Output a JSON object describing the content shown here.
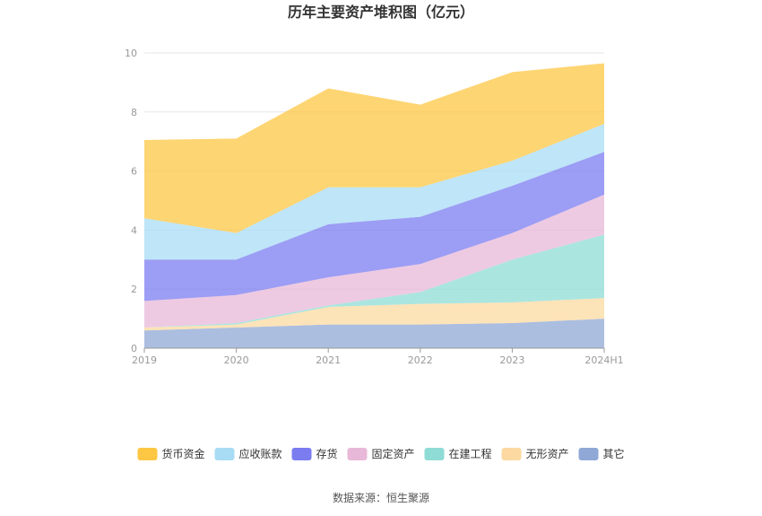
{
  "chart_data": {
    "type": "area",
    "stacked": true,
    "title": "历年主要资产堆积图（亿元）",
    "xlabel": "",
    "ylabel": "",
    "categories": [
      "2019",
      "2020",
      "2021",
      "2022",
      "2023",
      "2024H1"
    ],
    "ylim": [
      0,
      10
    ],
    "yticks": [
      0,
      2,
      4,
      6,
      8,
      10
    ],
    "grid": true,
    "legend_position": "bottom",
    "series": [
      {
        "name": "其它",
        "color": "#8fa8d6",
        "values": [
          0.6,
          0.7,
          0.8,
          0.8,
          0.85,
          1.0
        ]
      },
      {
        "name": "无形资产",
        "color": "#fcd9a0",
        "values": [
          0.1,
          0.1,
          0.6,
          0.7,
          0.7,
          0.7
        ]
      },
      {
        "name": "在建工程",
        "color": "#8fdcd6",
        "values": [
          0.0,
          0.05,
          0.05,
          0.4,
          1.45,
          2.15
        ]
      },
      {
        "name": "固定资产",
        "color": "#e8b8d8",
        "values": [
          0.9,
          0.95,
          0.95,
          0.95,
          0.9,
          1.35
        ]
      },
      {
        "name": "存货",
        "color": "#7b7cf0",
        "values": [
          1.4,
          1.2,
          1.8,
          1.6,
          1.6,
          1.45
        ]
      },
      {
        "name": "应收账款",
        "color": "#a8dcf5",
        "values": [
          1.4,
          0.9,
          1.25,
          1.0,
          0.85,
          0.95
        ]
      },
      {
        "name": "货币资金",
        "color": "#fdc744",
        "values": [
          2.65,
          3.2,
          3.35,
          2.8,
          3.0,
          2.05
        ]
      }
    ],
    "legend_order": [
      "货币资金",
      "应收账款",
      "存货",
      "固定资产",
      "在建工程",
      "无形资产",
      "其它"
    ]
  },
  "footer": {
    "source": "数据来源：恒生聚源"
  }
}
